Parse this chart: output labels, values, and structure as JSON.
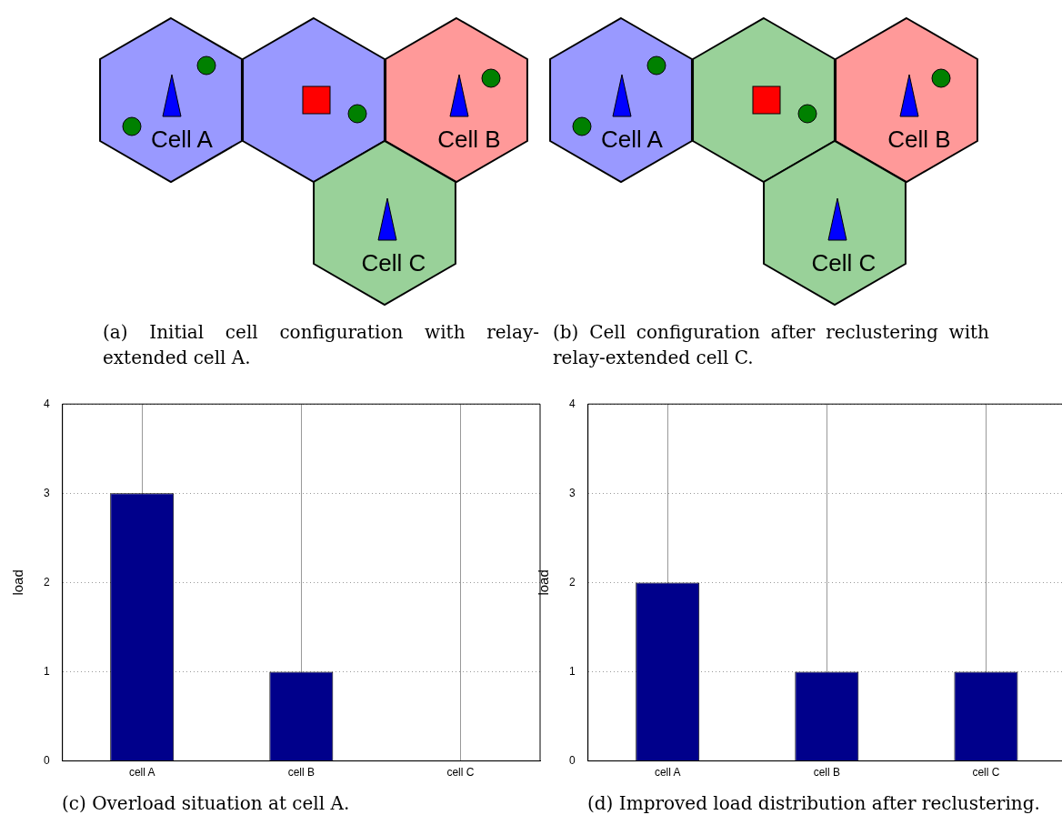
{
  "chart_data": [
    {
      "type": "other",
      "title": "(a) Initial cell configuration with relay-extended cell A.",
      "annotations": [
        "Cell A",
        "Cell B",
        "Cell C"
      ],
      "colors": [
        "#9999ff",
        "#9999ff",
        "#ff9999",
        "#99d199"
      ]
    },
    {
      "type": "other",
      "title": "(b) Cell configuration after reclustering with relay-extended cell C.",
      "annotations": [
        "Cell A",
        "Cell B",
        "Cell C"
      ],
      "colors": [
        "#9999ff",
        "#99d199",
        "#ff9999",
        "#99d199"
      ]
    },
    {
      "type": "bar",
      "title": "(c) Overload situation at cell A.",
      "categories": [
        "cell A",
        "cell B",
        "cell C"
      ],
      "values": [
        3,
        1,
        0
      ],
      "color": "#00008b",
      "ylabel": "load",
      "ylim": [
        0,
        4
      ],
      "yticks": [
        0,
        1,
        2,
        3,
        4
      ],
      "grid": true,
      "legend": false
    },
    {
      "type": "bar",
      "title": "(d) Improved load distribution after reclustering.",
      "categories": [
        "cell A",
        "cell B",
        "cell C"
      ],
      "values": [
        2,
        1,
        1
      ],
      "color": "#00008b",
      "ylabel": "load",
      "ylim": [
        0,
        4
      ],
      "yticks": [
        0,
        1,
        2,
        3,
        4
      ],
      "grid": true,
      "legend": false
    }
  ]
}
